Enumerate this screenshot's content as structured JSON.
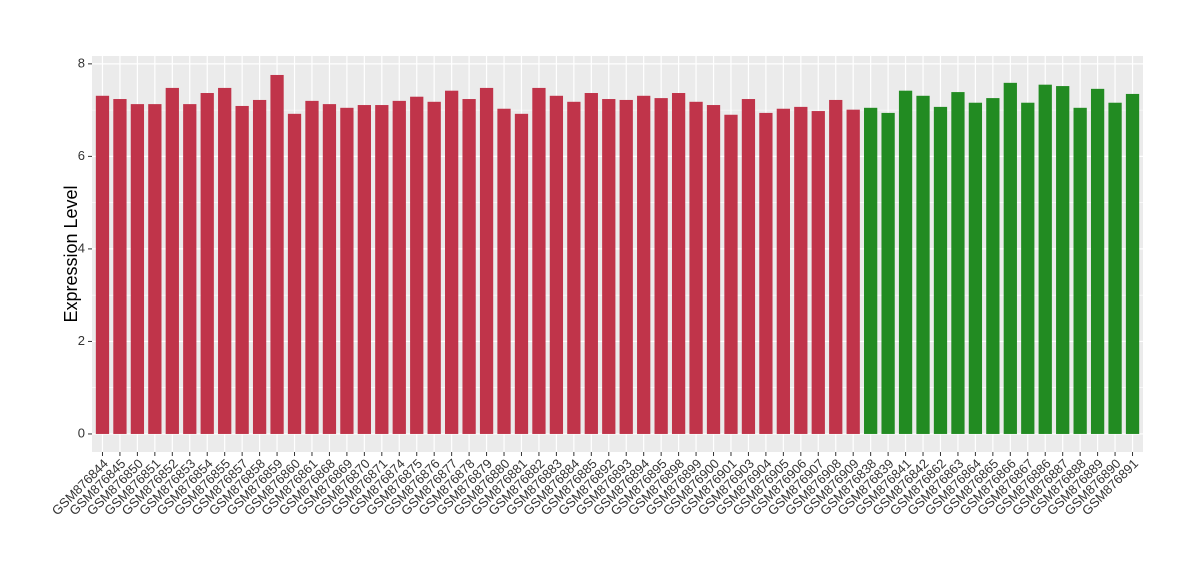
{
  "chart_data": {
    "type": "bar",
    "y_label": "Expression Level",
    "categories": [
      "GSM876844",
      "GSM876845",
      "GSM876850",
      "GSM876851",
      "GSM876852",
      "GSM876853",
      "GSM876854",
      "GSM876855",
      "GSM876857",
      "GSM876858",
      "GSM876859",
      "GSM876860",
      "GSM876861",
      "GSM876868",
      "GSM876869",
      "GSM876870",
      "GSM876871",
      "GSM876874",
      "GSM876875",
      "GSM876876",
      "GSM876877",
      "GSM876878",
      "GSM876879",
      "GSM876880",
      "GSM876881",
      "GSM876882",
      "GSM876883",
      "GSM876884",
      "GSM876885",
      "GSM876892",
      "GSM876893",
      "GSM876894",
      "GSM876895",
      "GSM876898",
      "GSM876899",
      "GSM876900",
      "GSM876901",
      "GSM876903",
      "GSM876904",
      "GSM876905",
      "GSM876906",
      "GSM876907",
      "GSM876908",
      "GSM876909",
      "GSM876838",
      "GSM876839",
      "GSM876841",
      "GSM876842",
      "GSM876862",
      "GSM876863",
      "GSM876864",
      "GSM876865",
      "GSM876866",
      "GSM876867",
      "GSM876886",
      "GSM876887",
      "GSM876888",
      "GSM876889",
      "GSM876890",
      "GSM876891"
    ],
    "values": [
      7.31,
      7.24,
      7.13,
      7.13,
      7.48,
      7.13,
      7.37,
      7.48,
      7.09,
      7.22,
      7.76,
      6.92,
      7.2,
      7.13,
      7.05,
      7.11,
      7.11,
      7.2,
      7.29,
      7.18,
      7.42,
      7.24,
      7.48,
      7.03,
      6.92,
      7.48,
      7.31,
      7.18,
      7.37,
      7.24,
      7.22,
      7.31,
      7.26,
      7.37,
      7.18,
      7.11,
      6.9,
      7.24,
      6.94,
      7.03,
      7.07,
      6.98,
      7.22,
      7.01,
      7.05,
      6.94,
      7.42,
      7.31,
      7.07,
      7.39,
      7.16,
      7.26,
      7.59,
      7.16,
      7.55,
      7.52,
      7.05,
      7.46,
      7.16,
      7.35
    ],
    "colors": [
      "#c0344a",
      "#c0344a",
      "#c0344a",
      "#c0344a",
      "#c0344a",
      "#c0344a",
      "#c0344a",
      "#c0344a",
      "#c0344a",
      "#c0344a",
      "#c0344a",
      "#c0344a",
      "#c0344a",
      "#c0344a",
      "#c0344a",
      "#c0344a",
      "#c0344a",
      "#c0344a",
      "#c0344a",
      "#c0344a",
      "#c0344a",
      "#c0344a",
      "#c0344a",
      "#c0344a",
      "#c0344a",
      "#c0344a",
      "#c0344a",
      "#c0344a",
      "#c0344a",
      "#c0344a",
      "#c0344a",
      "#c0344a",
      "#c0344a",
      "#c0344a",
      "#c0344a",
      "#c0344a",
      "#c0344a",
      "#c0344a",
      "#c0344a",
      "#c0344a",
      "#c0344a",
      "#c0344a",
      "#c0344a",
      "#c0344a",
      "#228b22",
      "#228b22",
      "#228b22",
      "#228b22",
      "#228b22",
      "#228b22",
      "#228b22",
      "#228b22",
      "#228b22",
      "#228b22",
      "#228b22",
      "#228b22",
      "#228b22",
      "#228b22",
      "#228b22",
      "#228b22"
    ],
    "ylim": [
      -0.39,
      8.17
    ],
    "yticks": [
      0,
      2,
      4,
      6,
      8
    ],
    "grid": true
  }
}
